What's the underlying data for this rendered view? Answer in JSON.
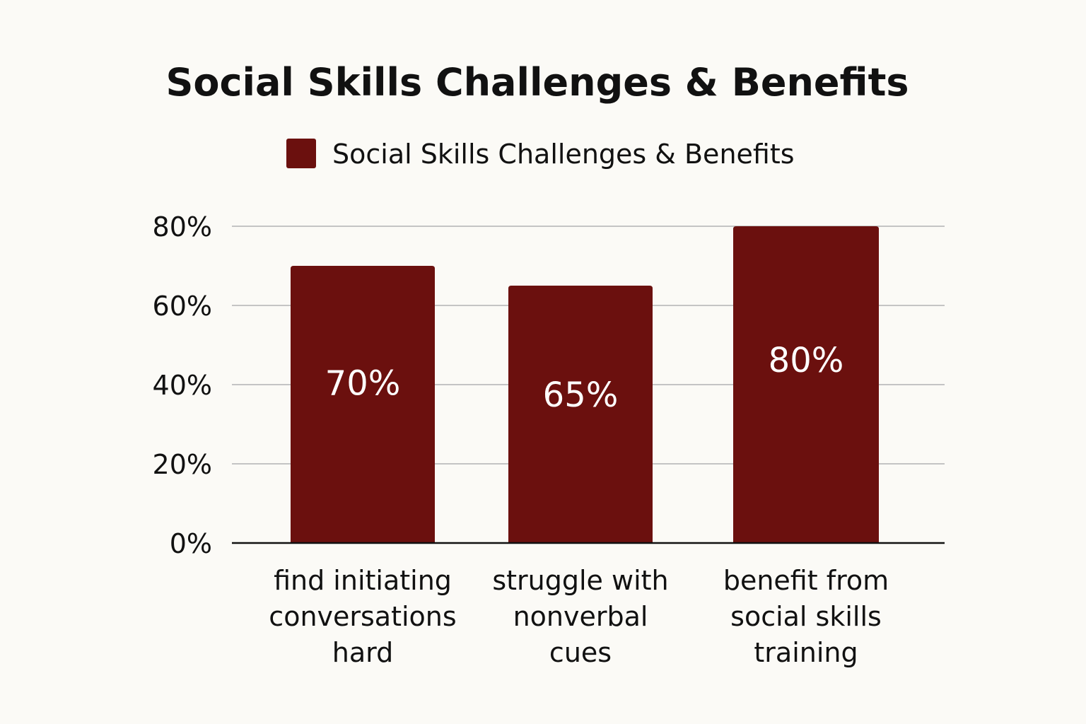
{
  "chart_data": {
    "type": "bar",
    "title": "Social Skills Challenges & Benefits",
    "legend": {
      "placement": "top-center",
      "entries": [
        {
          "label": "Social Skills Challenges & Benefits",
          "color": "#6b100e"
        }
      ]
    },
    "categories": [
      [
        "find initiating",
        "conversations",
        "hard"
      ],
      [
        "struggle with",
        "nonverbal",
        "cues"
      ],
      [
        "benefit from",
        "social skills",
        "training"
      ]
    ],
    "series": [
      {
        "name": "Social Skills Challenges & Benefits",
        "color": "#6b100e",
        "values": [
          70,
          65,
          80
        ],
        "data_labels": [
          "70%",
          "65%",
          "80%"
        ]
      }
    ],
    "y_ticks": [
      {
        "value": 0,
        "label": "0%"
      },
      {
        "value": 20,
        "label": "20%"
      },
      {
        "value": 40,
        "label": "40%"
      },
      {
        "value": 60,
        "label": "60%"
      },
      {
        "value": 80,
        "label": "80%"
      }
    ],
    "ylim": [
      0,
      80
    ],
    "grid": true,
    "xlabel": "",
    "ylabel": ""
  }
}
